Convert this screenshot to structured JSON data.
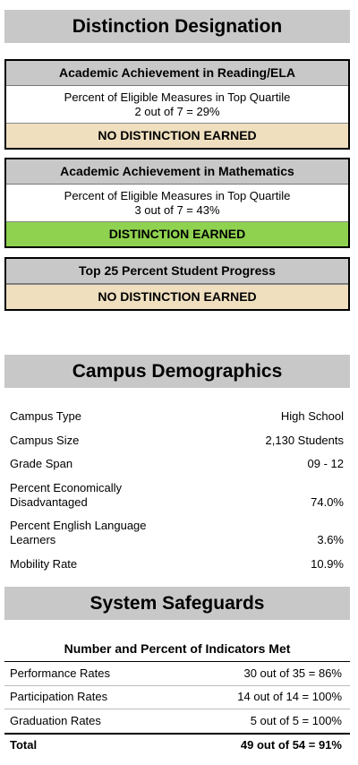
{
  "distinction": {
    "title": "Distinction Designation",
    "boxes": [
      {
        "heading": "Academic Achievement in Reading/ELA",
        "line1": "Percent of Eligible Measures in Top Quartile",
        "line2": "2 out of 7 = 29%",
        "status": "NO DISTINCTION EARNED",
        "status_color": "#efdfbf"
      },
      {
        "heading": "Academic Achievement in Mathematics",
        "line1": "Percent of Eligible Measures in Top Quartile",
        "line2": "3 out of 7 = 43%",
        "status": "DISTINCTION EARNED",
        "status_color": "#8fd24f"
      },
      {
        "heading": "Top 25 Percent Student Progress",
        "status": "NO DISTINCTION EARNED",
        "status_color": "#efdfbf"
      }
    ]
  },
  "demographics": {
    "title": "Campus Demographics",
    "rows": [
      {
        "label": "Campus Type",
        "value": "High School"
      },
      {
        "label": "Campus Size",
        "value": "2,130 Students"
      },
      {
        "label": "Grade Span",
        "value": "09 - 12"
      },
      {
        "label": "Percent Economically Disadvantaged",
        "value": "74.0%"
      },
      {
        "label": "Percent English Language Learners",
        "value": "3.6%"
      },
      {
        "label": "Mobility Rate",
        "value": "10.9%"
      }
    ]
  },
  "safeguards": {
    "title": "System Safeguards",
    "table_heading": "Number and Percent of Indicators Met",
    "rows": [
      {
        "label": "Performance Rates",
        "value": "30 out of 35 = 86%"
      },
      {
        "label": "Participation Rates",
        "value": "14 out of 14 = 100%"
      },
      {
        "label": "Graduation Rates",
        "value": "5 out of 5 = 100%"
      }
    ],
    "total": {
      "label": "Total",
      "value": "49 out of 54 = 91%"
    }
  }
}
